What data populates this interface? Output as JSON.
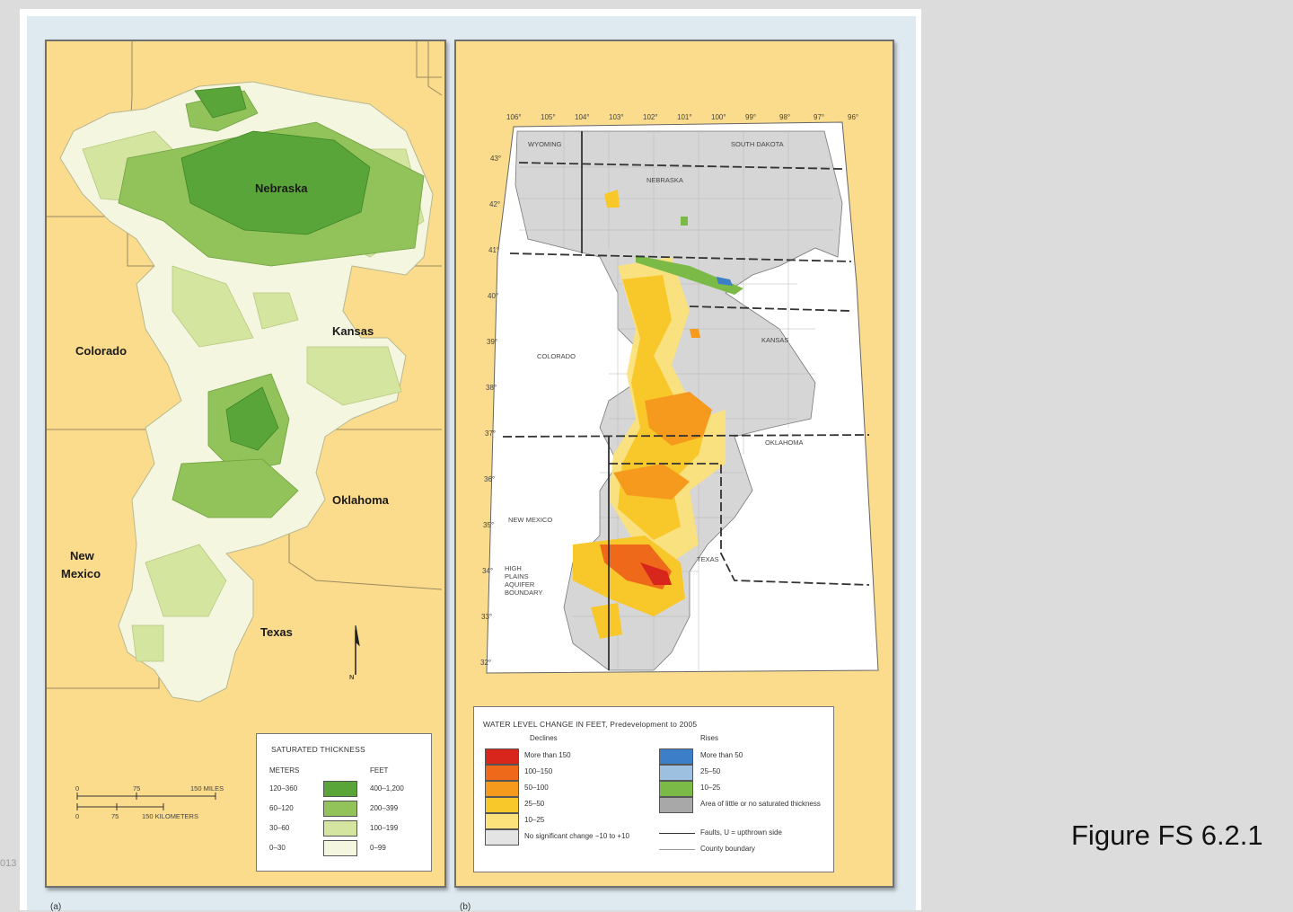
{
  "figure_caption": "Figure FS 6.2.1",
  "edge_text": "013",
  "panel_a": {
    "caption": "(a)",
    "states": {
      "nebraska": "Nebraska",
      "kansas": "Kansas",
      "colorado": "Colorado",
      "oklahoma": "Oklahoma",
      "new_mexico_1": "New",
      "new_mexico_2": "Mexico",
      "texas": "Texas"
    },
    "north_arrow": "N",
    "scale": {
      "miles_ticks": [
        "0",
        "75",
        "150 MILES"
      ],
      "km_ticks": [
        "0",
        "75",
        "150 KILOMETERS"
      ]
    },
    "legend": {
      "title": "SATURATED THICKNESS",
      "meters_header": "METERS",
      "feet_header": "FEET",
      "rows": [
        {
          "meters": "120–360",
          "feet": "400–1,200",
          "color": "#5aa53a"
        },
        {
          "meters": "60–120",
          "feet": "200–399",
          "color": "#92c35a"
        },
        {
          "meters": "30–60",
          "feet": "100–199",
          "color": "#d4e5a0"
        },
        {
          "meters": "0–30",
          "feet": "0–99",
          "color": "#f4f6e0"
        }
      ]
    }
  },
  "panel_b": {
    "caption": "(b)",
    "longitudes": [
      "106°",
      "105°",
      "104°",
      "103°",
      "102°",
      "101°",
      "100°",
      "99°",
      "98°",
      "97°",
      "96°"
    ],
    "latitudes": [
      "43°",
      "42°",
      "41°",
      "40°",
      "39°",
      "38°",
      "37°",
      "36°",
      "35°",
      "34°",
      "33°",
      "32°"
    ],
    "map_labels": {
      "wyoming": "WYOMING",
      "south_dakota": "SOUTH DAKOTA",
      "nebraska": "NEBRASKA",
      "colorado": "COLORADO",
      "kansas": "KANSAS",
      "oklahoma": "OKLAHOMA",
      "new_mexico": "NEW MEXICO",
      "texas": "TEXAS",
      "boundary_1": "HIGH",
      "boundary_2": "PLAINS",
      "boundary_3": "AQUIFER",
      "boundary_4": "BOUNDARY"
    },
    "legend": {
      "title": "WATER LEVEL CHANGE IN FEET, Predevelopment to 2005",
      "declines_header": "Declines",
      "rises_header": "Rises",
      "declines": [
        {
          "label": "More than 150",
          "color": "#d8261c"
        },
        {
          "label": "100–150",
          "color": "#ee6a1a"
        },
        {
          "label": "50–100",
          "color": "#f59a1c"
        },
        {
          "label": "25–50",
          "color": "#f8c72a"
        },
        {
          "label": "10–25",
          "color": "#fbe27a"
        },
        {
          "label": "No significant change −10 to +10",
          "color": "#e4e4e4"
        }
      ],
      "rises": [
        {
          "label": "More than 50",
          "color": "#3c7ec8"
        },
        {
          "label": "25–50",
          "color": "#9ec0e0"
        },
        {
          "label": "10–25",
          "color": "#7cba48"
        },
        {
          "label": "Area of little or no saturated thickness",
          "color": "#a8a8a8"
        }
      ],
      "faults": "Faults, U = upthrown side",
      "county": "County boundary"
    }
  }
}
